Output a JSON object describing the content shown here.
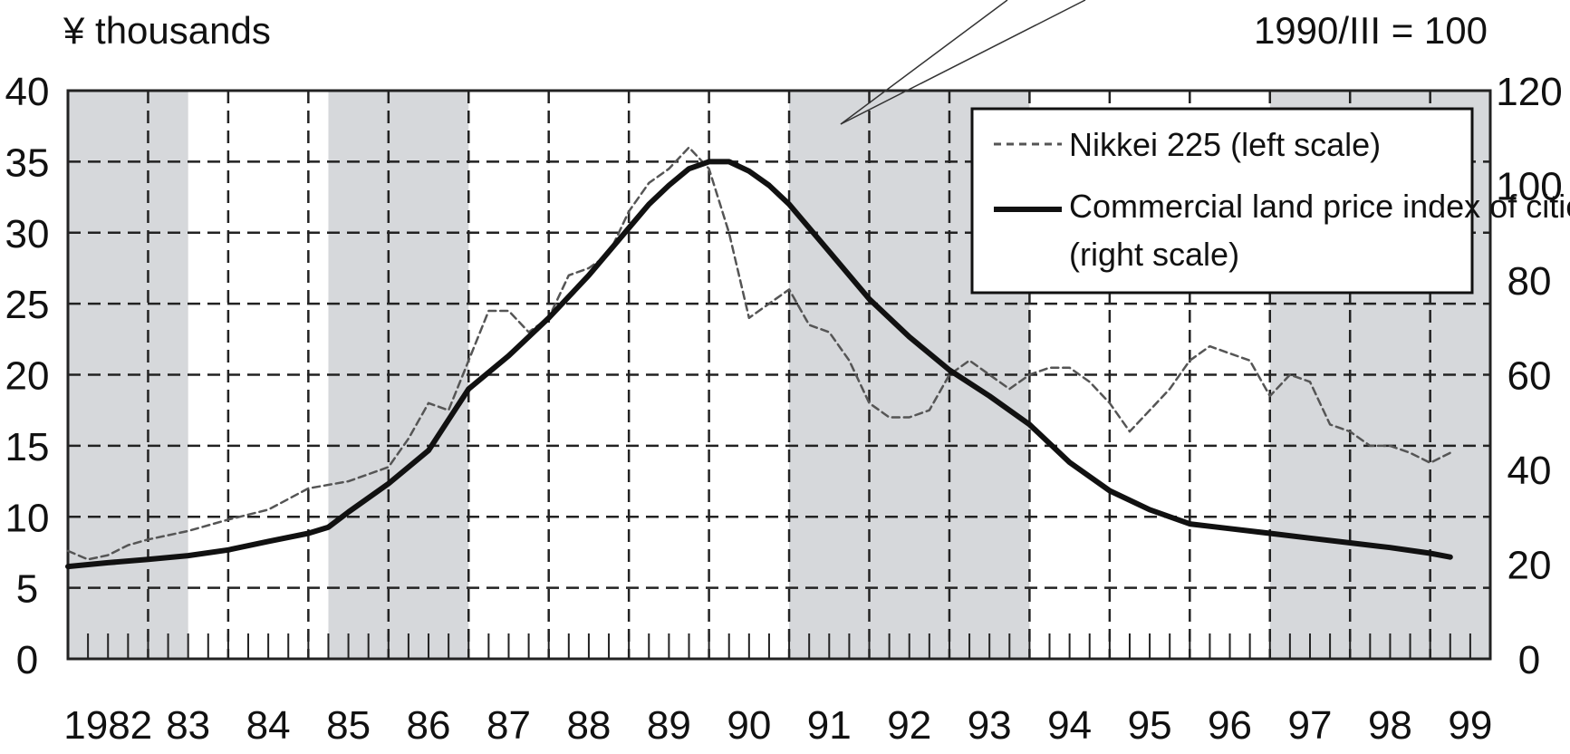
{
  "chart_data": {
    "type": "line",
    "left_unit_label": "¥ thousands",
    "right_unit_label": "1990/III = 100",
    "x_tick_labels": [
      "1982",
      "83",
      "84",
      "85",
      "86",
      "87",
      "88",
      "89",
      "90",
      "91",
      "92",
      "93",
      "94",
      "95",
      "96",
      "97",
      "98",
      "99"
    ],
    "x_range": [
      1982,
      1999.75
    ],
    "left_axis": {
      "ylim": [
        0,
        40
      ],
      "ticks": [
        "0",
        "5",
        "10",
        "15",
        "20",
        "25",
        "30",
        "35",
        "40"
      ]
    },
    "right_axis": {
      "ylim": [
        0,
        120
      ],
      "ticks": [
        "0",
        "20",
        "40",
        "60",
        "80",
        "100",
        "120"
      ]
    },
    "grid": true,
    "legend_position": "top-right",
    "shaded_periods": [
      [
        1982.0,
        1983.5
      ],
      [
        1985.25,
        1987.0
      ],
      [
        1991.0,
        1994.0
      ],
      [
        1997.0,
        1999.75
      ]
    ],
    "series": [
      {
        "name": "Nikkei 225 (left scale)",
        "axis": "left",
        "style": "dashed",
        "color": "#555555",
        "points": [
          [
            1982.0,
            7.6
          ],
          [
            1982.25,
            7.0
          ],
          [
            1982.5,
            7.3
          ],
          [
            1982.75,
            8.0
          ],
          [
            1983.0,
            8.4
          ],
          [
            1983.5,
            9.0
          ],
          [
            1984.0,
            9.8
          ],
          [
            1984.5,
            10.5
          ],
          [
            1985.0,
            12.0
          ],
          [
            1985.5,
            12.5
          ],
          [
            1986.0,
            13.5
          ],
          [
            1986.25,
            15.5
          ],
          [
            1986.5,
            18.0
          ],
          [
            1986.75,
            17.5
          ],
          [
            1987.0,
            21.0
          ],
          [
            1987.25,
            24.5
          ],
          [
            1987.5,
            24.5
          ],
          [
            1987.75,
            23.0
          ],
          [
            1988.0,
            24.0
          ],
          [
            1988.25,
            27.0
          ],
          [
            1988.5,
            27.5
          ],
          [
            1988.75,
            28.5
          ],
          [
            1989.0,
            31.5
          ],
          [
            1989.25,
            33.5
          ],
          [
            1989.5,
            34.5
          ],
          [
            1989.75,
            36.0
          ],
          [
            1990.0,
            34.5
          ],
          [
            1990.25,
            30.0
          ],
          [
            1990.5,
            24.0
          ],
          [
            1990.75,
            25.0
          ],
          [
            1991.0,
            26.0
          ],
          [
            1991.25,
            23.5
          ],
          [
            1991.5,
            23.0
          ],
          [
            1991.75,
            21.0
          ],
          [
            1992.0,
            18.0
          ],
          [
            1992.25,
            17.0
          ],
          [
            1992.5,
            17.0
          ],
          [
            1992.75,
            17.5
          ],
          [
            1993.0,
            20.0
          ],
          [
            1993.25,
            21.0
          ],
          [
            1993.5,
            20.0
          ],
          [
            1993.75,
            19.0
          ],
          [
            1994.0,
            20.0
          ],
          [
            1994.25,
            20.5
          ],
          [
            1994.5,
            20.5
          ],
          [
            1994.75,
            19.5
          ],
          [
            1995.0,
            18.0
          ],
          [
            1995.25,
            16.0
          ],
          [
            1995.5,
            17.5
          ],
          [
            1995.75,
            19.0
          ],
          [
            1996.0,
            21.0
          ],
          [
            1996.25,
            22.0
          ],
          [
            1996.5,
            21.5
          ],
          [
            1996.75,
            21.0
          ],
          [
            1997.0,
            18.5
          ],
          [
            1997.25,
            20.0
          ],
          [
            1997.5,
            19.5
          ],
          [
            1997.75,
            16.5
          ],
          [
            1998.0,
            16.0
          ],
          [
            1998.25,
            15.0
          ],
          [
            1998.5,
            15.0
          ],
          [
            1998.75,
            14.5
          ],
          [
            1999.0,
            13.8
          ],
          [
            1999.25,
            14.5
          ]
        ]
      },
      {
        "name": "Commercial land price index of cities (right scale)",
        "axis": "right",
        "style": "solid",
        "color": "#111111",
        "points": [
          [
            1982.0,
            19.5
          ],
          [
            1982.5,
            20.3
          ],
          [
            1983.0,
            21.0
          ],
          [
            1983.5,
            21.8
          ],
          [
            1984.0,
            23.0
          ],
          [
            1984.5,
            24.8
          ],
          [
            1985.0,
            26.5
          ],
          [
            1985.25,
            27.8
          ],
          [
            1985.5,
            31.0
          ],
          [
            1986.0,
            37.0
          ],
          [
            1986.5,
            44.0
          ],
          [
            1987.0,
            57.0
          ],
          [
            1987.5,
            64.0
          ],
          [
            1988.0,
            72.0
          ],
          [
            1988.5,
            81.0
          ],
          [
            1989.0,
            91.0
          ],
          [
            1989.25,
            96.0
          ],
          [
            1989.5,
            100.0
          ],
          [
            1989.75,
            103.5
          ],
          [
            1990.0,
            105.0
          ],
          [
            1990.25,
            105.0
          ],
          [
            1990.5,
            103.0
          ],
          [
            1990.75,
            100.0
          ],
          [
            1991.0,
            96.0
          ],
          [
            1991.5,
            86.0
          ],
          [
            1992.0,
            76.0
          ],
          [
            1992.5,
            68.0
          ],
          [
            1993.0,
            61.0
          ],
          [
            1993.5,
            55.5
          ],
          [
            1994.0,
            49.5
          ],
          [
            1994.5,
            41.5
          ],
          [
            1995.0,
            35.5
          ],
          [
            1995.5,
            31.5
          ],
          [
            1996.0,
            28.5
          ],
          [
            1996.5,
            27.5
          ],
          [
            1997.0,
            26.5
          ],
          [
            1997.5,
            25.5
          ],
          [
            1998.0,
            24.5
          ],
          [
            1998.5,
            23.5
          ],
          [
            1999.0,
            22.3
          ],
          [
            1999.25,
            21.5
          ]
        ]
      }
    ],
    "legend": {
      "nikkei_label": "Nikkei 225 (left scale)",
      "land_label_line1": "Commercial land price index of cities",
      "land_label_line2": "(right scale)"
    }
  }
}
